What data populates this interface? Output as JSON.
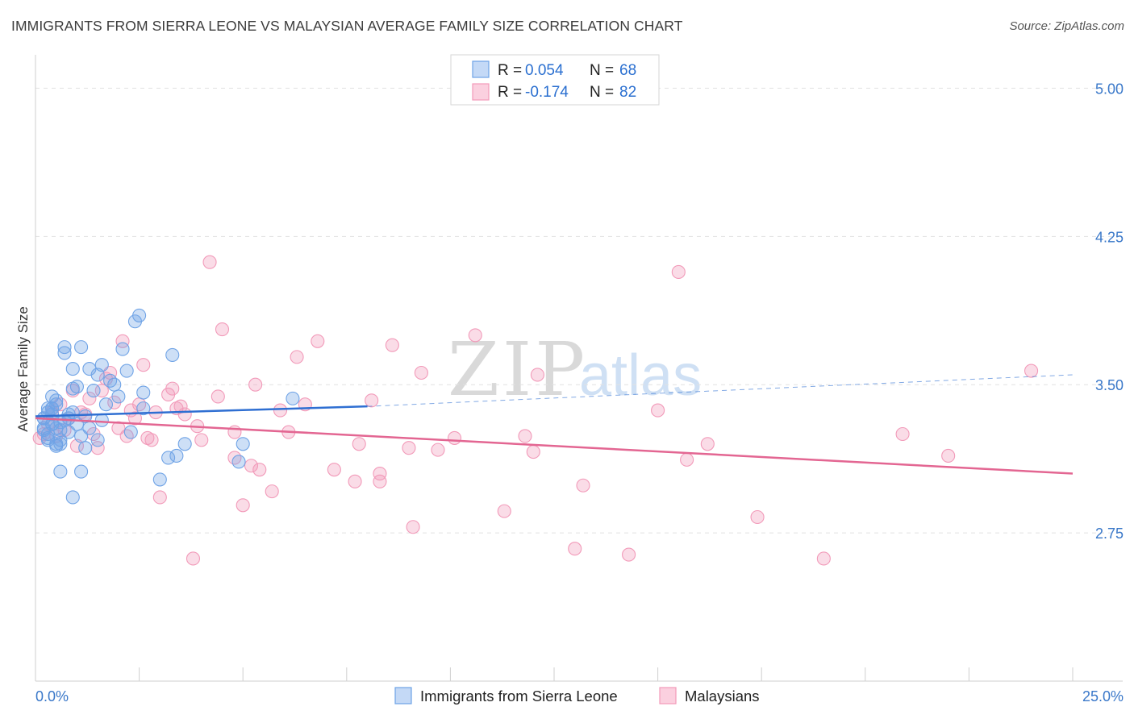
{
  "title": "IMMIGRANTS FROM SIERRA LEONE VS MALAYSIAN AVERAGE FAMILY SIZE CORRELATION CHART",
  "source": "Source: ZipAtlas.com",
  "watermark": {
    "zip": "ZIP",
    "atlas": "atlas"
  },
  "legend": {
    "r_label": "R =",
    "n_label": "N =",
    "rows": [
      {
        "r": "0.054",
        "n": "68"
      },
      {
        "r": "-0.174",
        "n": "82"
      }
    ]
  },
  "colors": {
    "blue": "#6fa3e6",
    "blue_line": "#2f6fd2",
    "pink": "#f29ab9",
    "pink_line": "#e36692",
    "axis_text": "#3a78c9"
  },
  "chart_data": {
    "type": "scatter",
    "title": "IMMIGRANTS FROM SIERRA LEONE VS MALAYSIAN AVERAGE FAMILY SIZE CORRELATION CHART",
    "xlabel": "",
    "ylabel": "Average Family Size",
    "xlim": [
      0,
      25
    ],
    "ylim": [
      2.0,
      5.12
    ],
    "x_tick_labels": [
      "0.0%",
      "25.0%"
    ],
    "y_ticks": [
      2.75,
      3.5,
      4.25,
      5.0
    ],
    "y_tick_labels": [
      "2.75",
      "3.50",
      "4.25",
      "5.00"
    ],
    "series": [
      {
        "name": "Immigrants from Sierra Leone",
        "r": 0.054,
        "n": 68,
        "trend": {
          "x": [
            0,
            8
          ],
          "y": [
            3.34,
            3.39
          ]
        },
        "trend_dashed": {
          "x": [
            8,
            25
          ],
          "y": [
            3.39,
            3.55
          ]
        },
        "x": [
          0.2,
          0.3,
          0.4,
          0.5,
          0.3,
          0.6,
          0.4,
          0.8,
          0.7,
          0.5,
          0.9,
          1.0,
          1.2,
          1.1,
          0.8,
          0.6,
          0.4,
          0.3,
          0.5,
          0.9,
          1.5,
          1.3,
          1.6,
          1.8,
          2.0,
          1.4,
          1.1,
          0.7,
          2.5,
          2.4,
          2.2,
          1.9,
          2.1,
          3.6,
          3.4,
          3.3,
          2.6,
          1.6,
          2.6,
          3.0,
          2.3,
          5.0,
          6.2,
          3.2,
          1.1,
          0.6,
          0.4,
          0.2,
          0.2,
          0.3,
          0.5,
          0.7,
          0.9,
          1.5,
          1.2,
          0.6,
          1.0,
          0.8,
          0.3,
          0.4,
          0.5,
          0.2,
          0.6,
          0.9,
          1.7,
          4.9,
          1.3,
          0.4
        ],
        "y": [
          3.33,
          3.36,
          3.3,
          3.28,
          3.25,
          3.22,
          3.38,
          3.35,
          3.32,
          3.4,
          3.36,
          3.3,
          3.34,
          3.24,
          3.26,
          3.2,
          3.44,
          3.38,
          3.42,
          3.48,
          3.55,
          3.58,
          3.6,
          3.52,
          3.44,
          3.47,
          3.69,
          3.69,
          3.85,
          3.82,
          3.57,
          3.5,
          3.68,
          3.2,
          3.14,
          3.65,
          3.46,
          3.32,
          3.38,
          3.02,
          3.26,
          3.2,
          3.43,
          3.13,
          3.06,
          3.06,
          3.35,
          3.27,
          3.33,
          3.22,
          3.19,
          3.66,
          3.58,
          3.22,
          3.18,
          3.27,
          3.49,
          3.33,
          3.23,
          3.3,
          3.2,
          3.28,
          3.31,
          2.93,
          3.4,
          3.11,
          3.28,
          3.38
        ]
      },
      {
        "name": "Malaysians",
        "r": -0.174,
        "n": 82,
        "trend": {
          "x": [
            0,
            25
          ],
          "y": [
            3.33,
            3.05
          ]
        },
        "x": [
          0.1,
          0.2,
          0.3,
          0.4,
          0.5,
          0.6,
          0.7,
          0.8,
          0.9,
          1.0,
          1.1,
          1.2,
          1.3,
          1.4,
          1.5,
          1.6,
          1.7,
          1.8,
          1.9,
          2.0,
          2.1,
          2.2,
          2.3,
          2.4,
          2.5,
          2.6,
          2.7,
          2.8,
          2.9,
          3.0,
          3.2,
          3.3,
          3.4,
          3.5,
          3.6,
          3.8,
          3.9,
          4.0,
          4.2,
          4.4,
          4.5,
          4.8,
          5.0,
          5.2,
          5.4,
          5.7,
          5.9,
          6.1,
          6.3,
          6.5,
          6.8,
          7.2,
          7.7,
          7.8,
          8.1,
          8.3,
          8.6,
          9.1,
          9.7,
          10.1,
          10.6,
          11.3,
          11.8,
          12.0,
          12.1,
          13.0,
          13.2,
          14.3,
          15.0,
          15.5,
          15.7,
          16.2,
          17.4,
          19.0,
          20.9,
          22.0,
          24.0,
          4.8,
          5.3,
          8.3,
          9.0,
          9.3
        ],
        "y": [
          3.23,
          3.25,
          3.3,
          3.36,
          3.24,
          3.4,
          3.27,
          3.33,
          3.47,
          3.19,
          3.36,
          3.35,
          3.43,
          3.25,
          3.18,
          3.47,
          3.53,
          3.56,
          3.41,
          3.28,
          3.72,
          3.24,
          3.37,
          3.33,
          3.4,
          3.6,
          3.23,
          3.22,
          3.36,
          2.93,
          3.45,
          3.48,
          3.38,
          3.39,
          3.35,
          2.62,
          3.29,
          3.22,
          4.12,
          3.44,
          3.78,
          3.26,
          2.89,
          3.09,
          3.07,
          2.96,
          3.37,
          3.26,
          3.64,
          3.4,
          3.72,
          3.07,
          3.01,
          3.2,
          3.42,
          3.05,
          3.7,
          2.78,
          3.17,
          3.23,
          3.75,
          2.86,
          3.24,
          3.16,
          3.55,
          2.67,
          2.99,
          2.64,
          3.37,
          4.07,
          3.12,
          3.2,
          2.83,
          2.62,
          3.25,
          3.14,
          3.57,
          3.13,
          3.5,
          3.01,
          3.18,
          3.56
        ]
      }
    ]
  },
  "bottom_legend": [
    "Immigrants from Sierra Leone",
    "Malaysians"
  ]
}
